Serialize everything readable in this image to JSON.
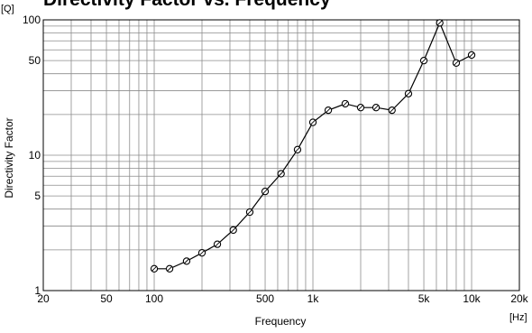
{
  "chart_data": {
    "type": "line",
    "title": "Directivity Factor vs. Frequency",
    "xlabel": "Frequency",
    "ylabel": "Directivity Factor",
    "x_unit": "[Hz]",
    "y_unit": "[Q]",
    "x_scale": "log",
    "y_scale": "log",
    "xlim": [
      20,
      20000
    ],
    "ylim": [
      1,
      100
    ],
    "grid": true,
    "legend": "none",
    "x_ticks": [
      {
        "value": 20,
        "label": "20"
      },
      {
        "value": 50,
        "label": "50"
      },
      {
        "value": 100,
        "label": "100"
      },
      {
        "value": 500,
        "label": "500"
      },
      {
        "value": 1000,
        "label": "1k"
      },
      {
        "value": 5000,
        "label": "5k"
      },
      {
        "value": 10000,
        "label": "10k"
      },
      {
        "value": 20000,
        "label": "20k"
      }
    ],
    "y_ticks": [
      {
        "value": 1,
        "label": "1"
      },
      {
        "value": 5,
        "label": "5"
      },
      {
        "value": 10,
        "label": "10"
      },
      {
        "value": 50,
        "label": "50"
      },
      {
        "value": 100,
        "label": "100"
      }
    ],
    "series": [
      {
        "color": "#000000",
        "marker": "circle",
        "x": [
          100,
          125,
          160,
          200,
          250,
          315,
          400,
          500,
          630,
          800,
          1000,
          1250,
          1600,
          2000,
          2500,
          3150,
          4000,
          5000,
          6300,
          8000,
          10000
        ],
        "y": [
          1.45,
          1.45,
          1.65,
          1.9,
          2.2,
          2.8,
          3.8,
          5.4,
          7.3,
          11,
          17.5,
          21.5,
          24,
          22.5,
          22.5,
          21.5,
          28.5,
          50,
          95,
          48,
          55
        ]
      }
    ]
  }
}
